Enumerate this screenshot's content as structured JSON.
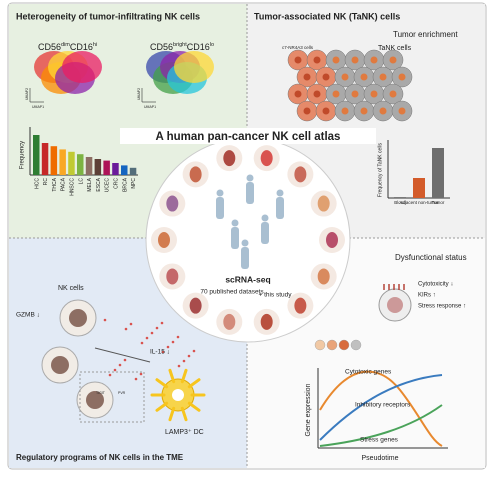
{
  "center": {
    "title": "A human pan-cancer NK cell atlas",
    "method": "scRNA-seq",
    "sources": "70 published datasets",
    "addition": "+ this study"
  },
  "heterogeneity": {
    "title": "Heterogeneity of tumor-infiltrating NK cells",
    "subsets": [
      {
        "marker1": "CD56",
        "level1": "dim",
        "marker2": "CD16",
        "level2": "hi"
      },
      {
        "marker1": "CD56",
        "level1": "bright",
        "marker2": "CD16",
        "level2": "lo"
      }
    ],
    "umap_x": "UMAP1",
    "umap_y": "UMAP2",
    "frequency_chart": {
      "y_label": "Frequency",
      "categories": [
        "HCC",
        "RC",
        "THCA",
        "PACA",
        "HNSCC",
        "LC",
        "MELA",
        "ESCA",
        "UCEC",
        "CRC",
        "BRCA",
        "NPC"
      ],
      "values": [
        100,
        80,
        72,
        64,
        58,
        52,
        45,
        40,
        36,
        30,
        24,
        18
      ],
      "colors": [
        "#2e7d32",
        "#c62828",
        "#ef6c00",
        "#f9a825",
        "#c0ca33",
        "#7cb342",
        "#8d6e63",
        "#5d4037",
        "#ad1457",
        "#6a1b9a",
        "#1565c0",
        "#546e7a"
      ]
    }
  },
  "tank": {
    "title": "Tumor-associated NK (TaNK) cells",
    "subtitle": "Tumor enrichment",
    "cell_label": "TaNK cells",
    "cluster_label": "c7-NR4A3 cells",
    "chart": {
      "y_label": "Frequency of TaNK cells",
      "categories": [
        "Blood",
        "Adjacent non-tumor",
        "Tumor"
      ],
      "values": [
        2,
        40,
        100
      ],
      "colors": [
        "#7a7a7a",
        "#d35b2a",
        "#6e6e6e"
      ]
    }
  },
  "dysfunction": {
    "title": "Dysfunctional status",
    "features": [
      "Cytotoxicity ↓",
      "KIRs ↑",
      "Stress response ↑"
    ],
    "curves": [
      "Cytotoxic genes",
      "Inhibitory receptors",
      "Stress genes"
    ],
    "y_label": "Gene expression",
    "x_label": "Pseudotime"
  },
  "regulatory": {
    "title": "Regulatory programs of NK cells in the TME",
    "nk_label": "NK cells",
    "gzmb": "GZMB ↓",
    "il15": "IL-15 ↓",
    "dc_label": "LAMP3⁺ DC",
    "receptor": "TIGIT",
    "ligand": "PVR"
  }
}
